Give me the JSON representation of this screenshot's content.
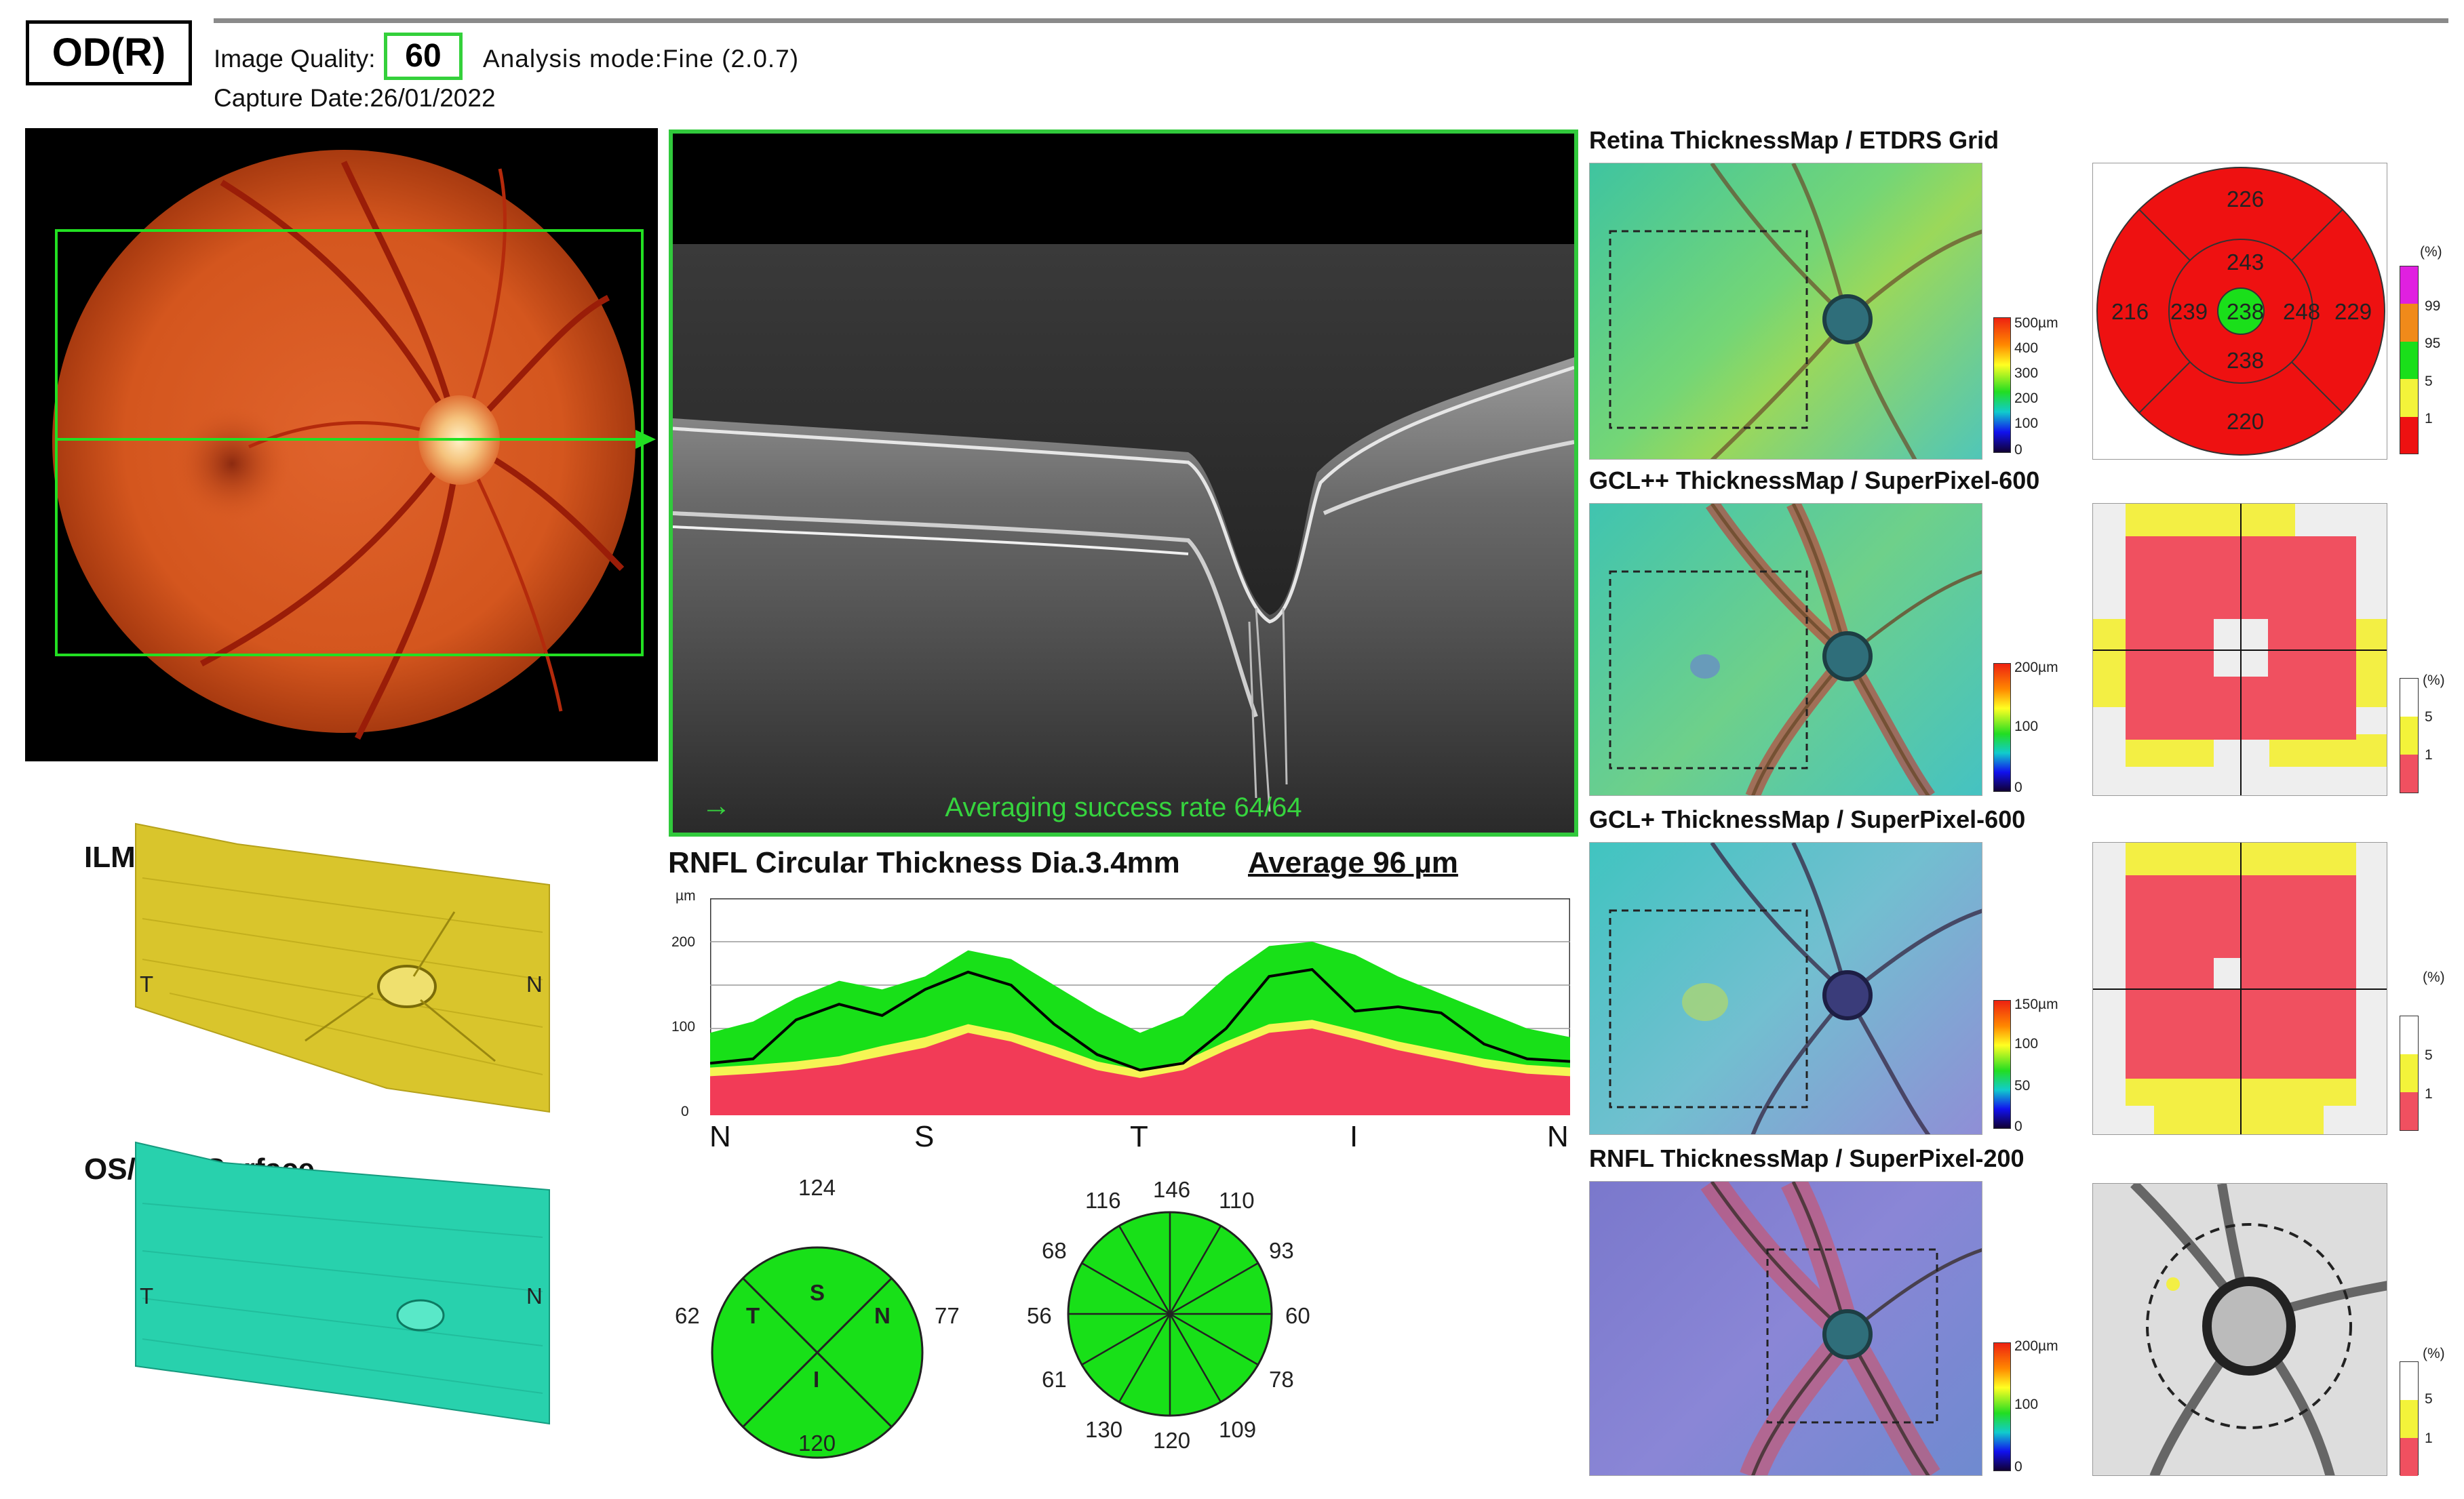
{
  "header": {
    "eye": "OD(R)",
    "image_quality_label": "Image Quality:",
    "image_quality_value": "60",
    "analysis_mode": "Analysis mode:Fine (2.0.7)",
    "capture_date": "Capture Date:26/01/2022"
  },
  "oct": {
    "caption": "Averaging success rate 64/64",
    "arrow": "→"
  },
  "surfaces": {
    "ilm_title": "ILM Surface",
    "rpe_title": "OS/RPE Surface",
    "t_label": "T",
    "n_label": "N"
  },
  "rnfl": {
    "title": "RNFL Circular Thickness Dia.3.4mm",
    "average": "Average  96 µm",
    "unit": "µm",
    "yticks": [
      "200",
      "100",
      "0"
    ],
    "xticks": [
      "N",
      "S",
      "T",
      "I",
      "N"
    ]
  },
  "chart_data": {
    "type": "area",
    "title": "RNFL Circular Thickness Dia.3.4mm",
    "ylabel": "µm",
    "ylim": [
      0,
      250
    ],
    "x_positions": [
      0,
      0.05,
      0.1,
      0.15,
      0.2,
      0.25,
      0.3,
      0.35,
      0.4,
      0.45,
      0.5,
      0.55,
      0.6,
      0.65,
      0.7,
      0.75,
      0.8,
      0.85,
      0.9,
      0.95,
      1.0
    ],
    "xticks": [
      "N",
      "S",
      "T",
      "I",
      "N"
    ],
    "series": [
      {
        "name": "",
        "role": "normal-upper",
        "color": "#18e018",
        "values": [
          95,
          108,
          135,
          155,
          145,
          160,
          190,
          180,
          150,
          120,
          95,
          115,
          160,
          195,
          200,
          185,
          160,
          140,
          120,
          100,
          90
        ]
      },
      {
        "name": "",
        "role": "yellow-band-upper",
        "color": "#f5f554",
        "values": [
          55,
          58,
          62,
          68,
          80,
          90,
          105,
          95,
          80,
          62,
          52,
          62,
          85,
          105,
          110,
          98,
          85,
          75,
          65,
          58,
          55
        ]
      },
      {
        "name": "",
        "role": "red-band-upper",
        "color": "#f23b57",
        "values": [
          45,
          48,
          52,
          58,
          68,
          78,
          95,
          85,
          68,
          52,
          43,
          52,
          75,
          95,
          100,
          88,
          75,
          65,
          55,
          48,
          45
        ]
      },
      {
        "name": "",
        "role": "patient",
        "color": "#000000",
        "values": [
          60,
          65,
          110,
          128,
          115,
          145,
          165,
          150,
          105,
          70,
          52,
          60,
          100,
          160,
          168,
          120,
          125,
          118,
          82,
          65,
          62
        ]
      }
    ]
  },
  "quadrant": {
    "S": "124",
    "N": "77",
    "I": "120",
    "T": "62",
    "letters": [
      "S",
      "N",
      "I",
      "T"
    ]
  },
  "clock": {
    "h12": "146",
    "h1": "110",
    "h2": "93",
    "h3": "60",
    "h4": "78",
    "h5": "109",
    "h6": "120",
    "h7": "130",
    "h8": "61",
    "h9": "56",
    "h10": "68",
    "h11": "116"
  },
  "maps": {
    "retina": "Retina ThicknessMap / ETDRS Grid",
    "gclpp": "GCL++ ThicknessMap / SuperPixel-600",
    "gclp": "GCL+ ThicknessMap / SuperPixel-600",
    "rnfl": "RNFL ThicknessMap / SuperPixel-200"
  },
  "colorbars": {
    "retina": [
      "500µm",
      "400",
      "300",
      "200",
      "100",
      "0"
    ],
    "gclpp": [
      "200µm",
      "100",
      "0"
    ],
    "gclp": [
      "150µm",
      "100",
      "50",
      "0"
    ],
    "rnfl": [
      "200µm",
      "100",
      "0"
    ]
  },
  "etdrs": {
    "top": "226",
    "left": "216",
    "right": "229",
    "bottom": "220",
    "inner_top": "243",
    "inner_left": "239",
    "center": "238",
    "inner_right": "248",
    "inner_bottom": "238"
  },
  "percentiles": {
    "unit": "(%)",
    "full": [
      "99",
      "95",
      "5",
      "1"
    ],
    "short": [
      "5",
      "1"
    ]
  },
  "colors": {
    "accent_green": "#33d13b",
    "abnormal_red": "#ee1111",
    "borderline_yellow": "#f3f33a",
    "normal_green": "#1adf1a"
  }
}
